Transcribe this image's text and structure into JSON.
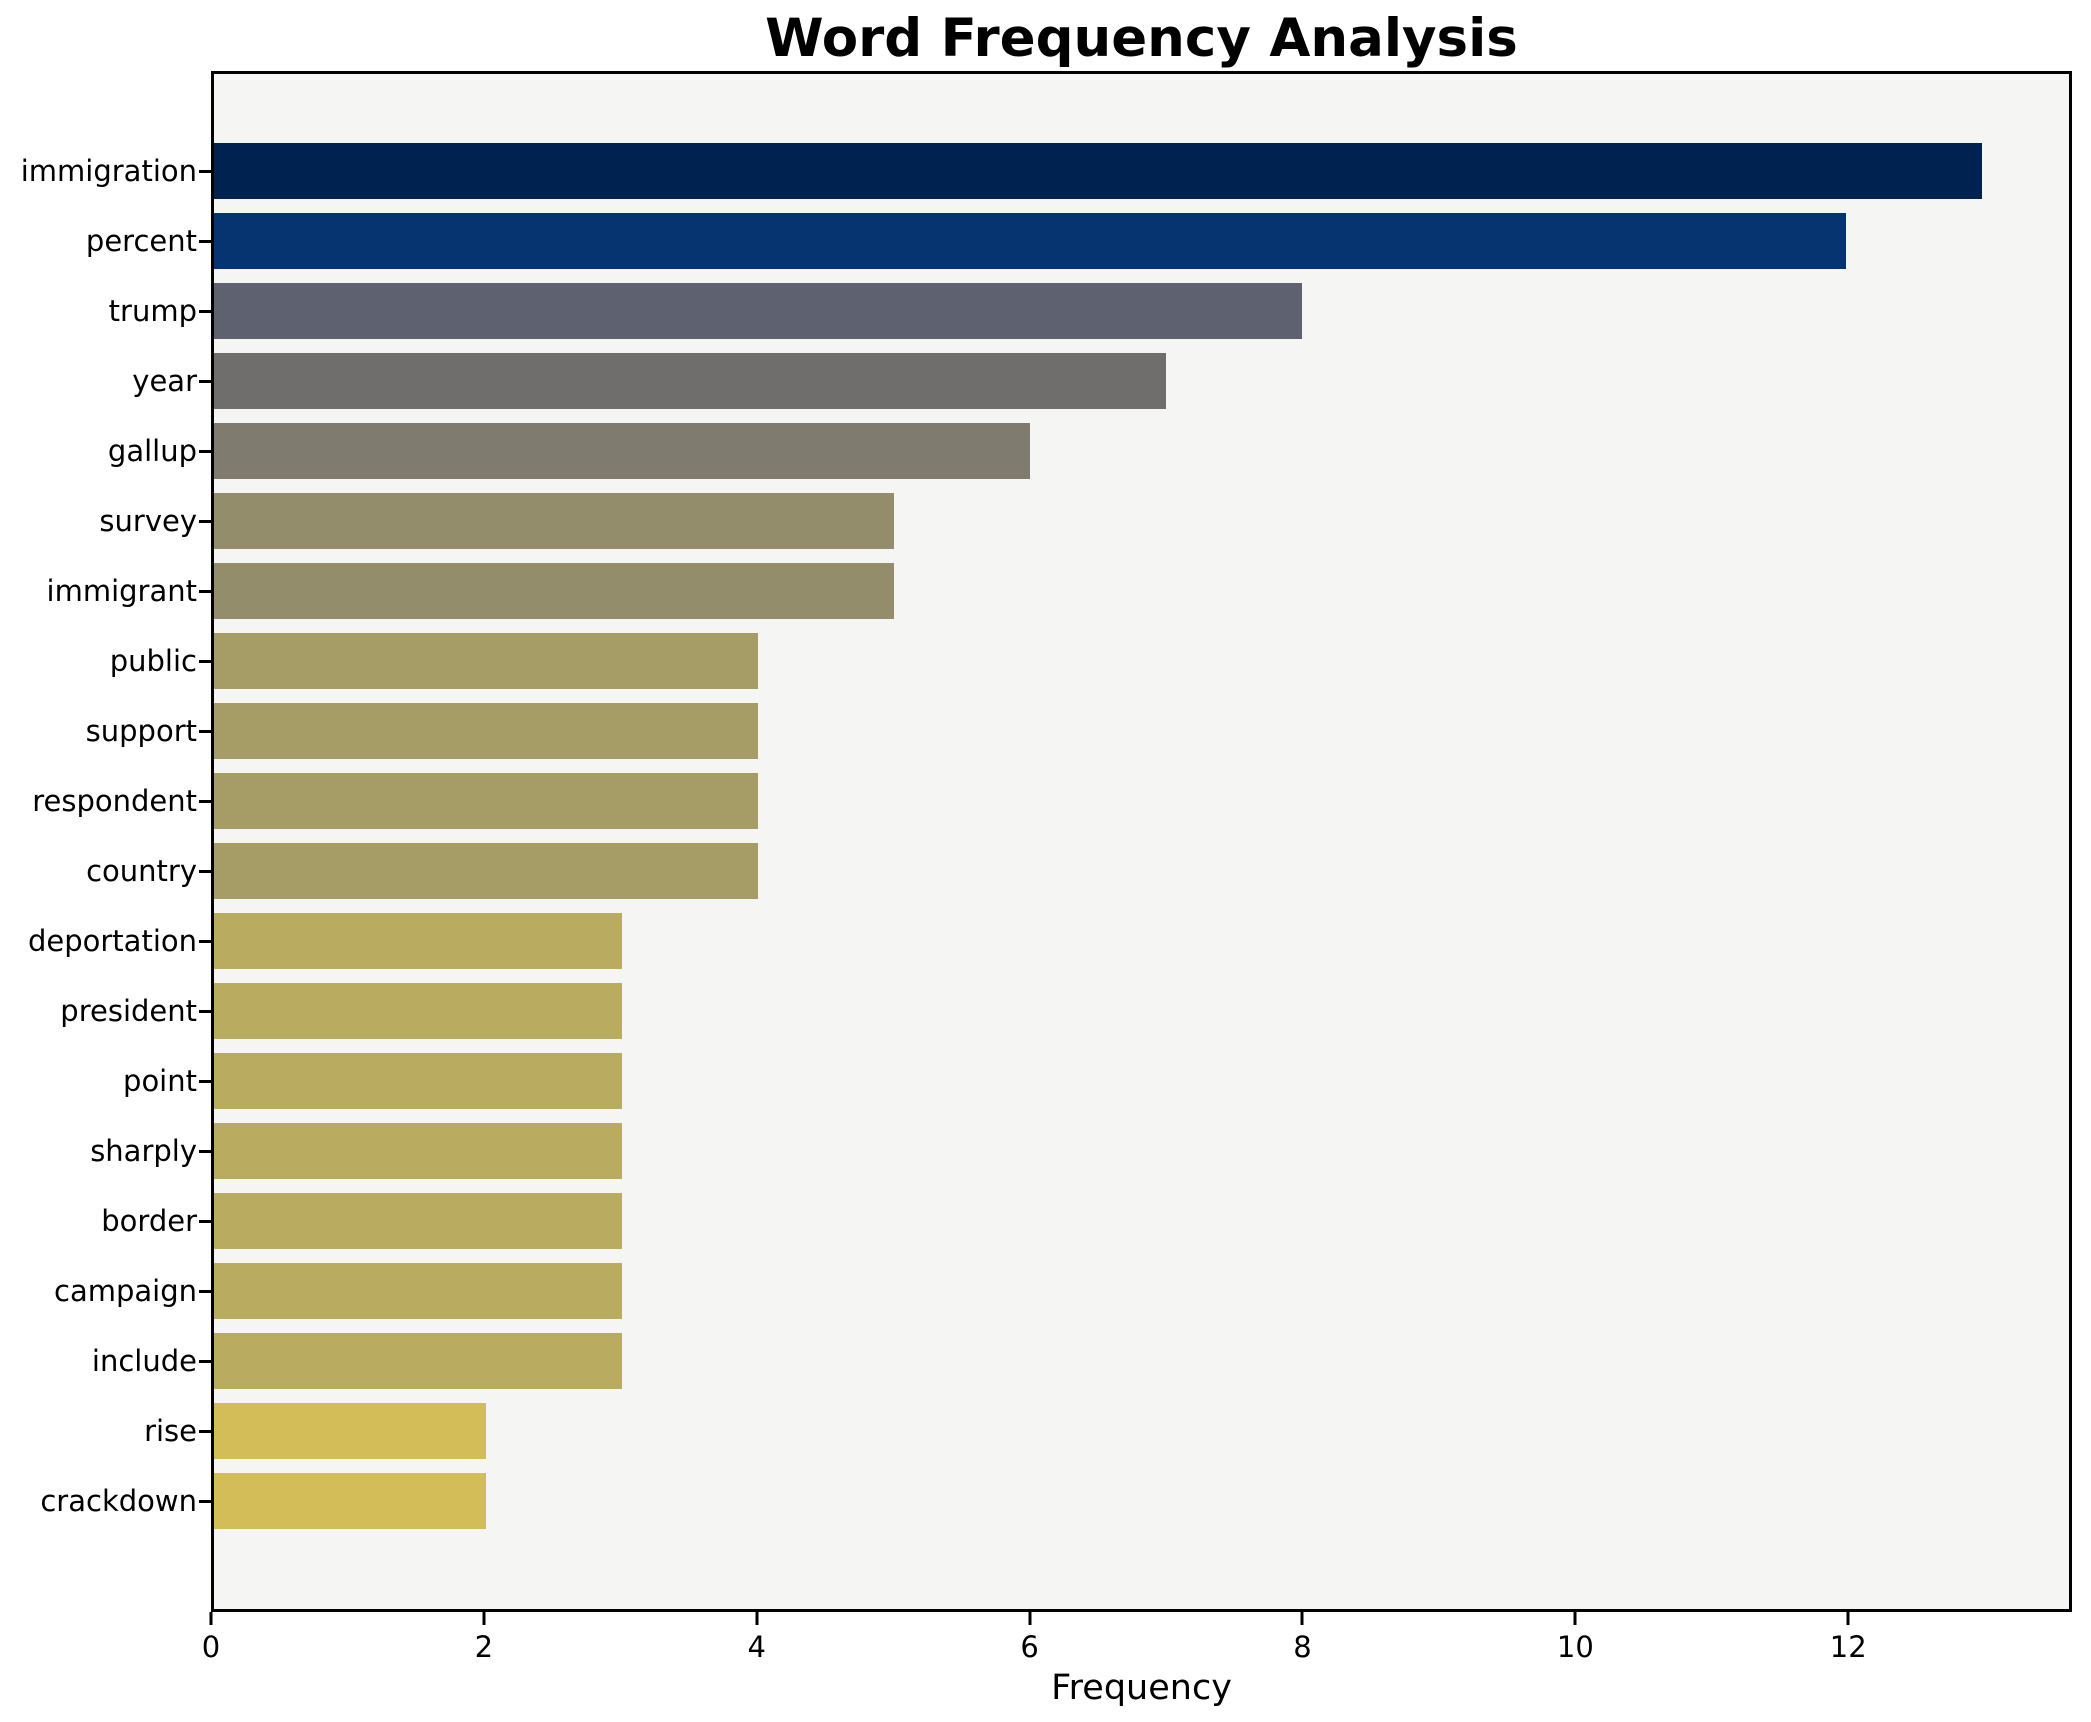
{
  "title": "Word Frequency Analysis",
  "axes": {
    "xlabel": "Frequency"
  },
  "chart_data": {
    "type": "bar",
    "orientation": "horizontal",
    "title": "Word Frequency Analysis",
    "xlabel": "Frequency",
    "ylabel": "",
    "categories": [
      "immigration",
      "percent",
      "trump",
      "year",
      "gallup",
      "survey",
      "immigrant",
      "public",
      "support",
      "respondent",
      "country",
      "deportation",
      "president",
      "point",
      "sharply",
      "border",
      "campaign",
      "include",
      "rise",
      "crackdown"
    ],
    "values": [
      13,
      12,
      8,
      7,
      6,
      5,
      5,
      4,
      4,
      4,
      4,
      3,
      3,
      3,
      3,
      3,
      3,
      3,
      2,
      2
    ],
    "bar_colors": [
      "#002250",
      "#053470",
      "#5d6170",
      "#6f6e6c",
      "#7f7b6e",
      "#948d6b",
      "#948d6b",
      "#a69d66",
      "#a69d66",
      "#a69d66",
      "#a69d66",
      "#b9ac60",
      "#b9ac60",
      "#b9ac60",
      "#b9ac60",
      "#b9ac60",
      "#b9ac60",
      "#b9ac60",
      "#d2bd59",
      "#d2bd59"
    ],
    "xlim": [
      0,
      13.64
    ],
    "x_ticks": [
      0,
      2,
      4,
      6,
      8,
      10,
      12
    ],
    "grid": false,
    "legend": null,
    "plot_background": "#f5f5f3",
    "figure_background": "#ffffff",
    "bar_height_fraction": 0.8
  }
}
